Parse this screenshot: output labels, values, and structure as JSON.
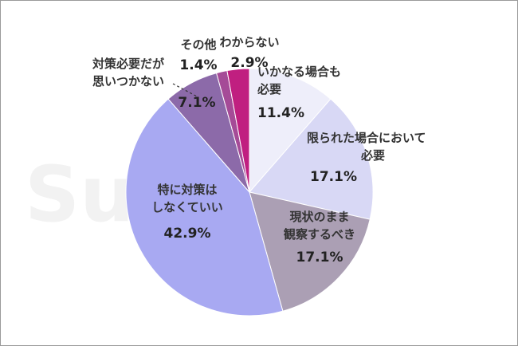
{
  "watermark": "Sumote",
  "chart_data": {
    "type": "pie",
    "start_angle_deg": 0,
    "direction": "clockwise",
    "unit": "%",
    "slices": [
      {
        "lines": [
          "いかなる場合も",
          "必要"
        ],
        "value": 11.4,
        "label": "11.4%",
        "color": "#eeeefa"
      },
      {
        "lines": [
          "限られた場合において",
          "必要"
        ],
        "value": 17.1,
        "label": "17.1%",
        "color": "#d8d8f5"
      },
      {
        "lines": [
          "現状のまま",
          "観察するべき"
        ],
        "value": 17.1,
        "label": "17.1%",
        "color": "#ab9fb4"
      },
      {
        "lines": [
          "特に対策は",
          "しなくていい"
        ],
        "value": 42.9,
        "label": "42.9%",
        "color": "#a8a9f2"
      },
      {
        "lines": [
          "対策必要だが",
          "思いつかない"
        ],
        "value": 7.1,
        "label": "7.1%",
        "color": "#8c6aa9"
      },
      {
        "lines": [
          "その他"
        ],
        "value": 1.4,
        "label": "1.4%",
        "color": "#a54b97"
      },
      {
        "lines": [
          "わからない"
        ],
        "value": 2.9,
        "label": "2.9%",
        "color": "#c01f80"
      }
    ]
  }
}
